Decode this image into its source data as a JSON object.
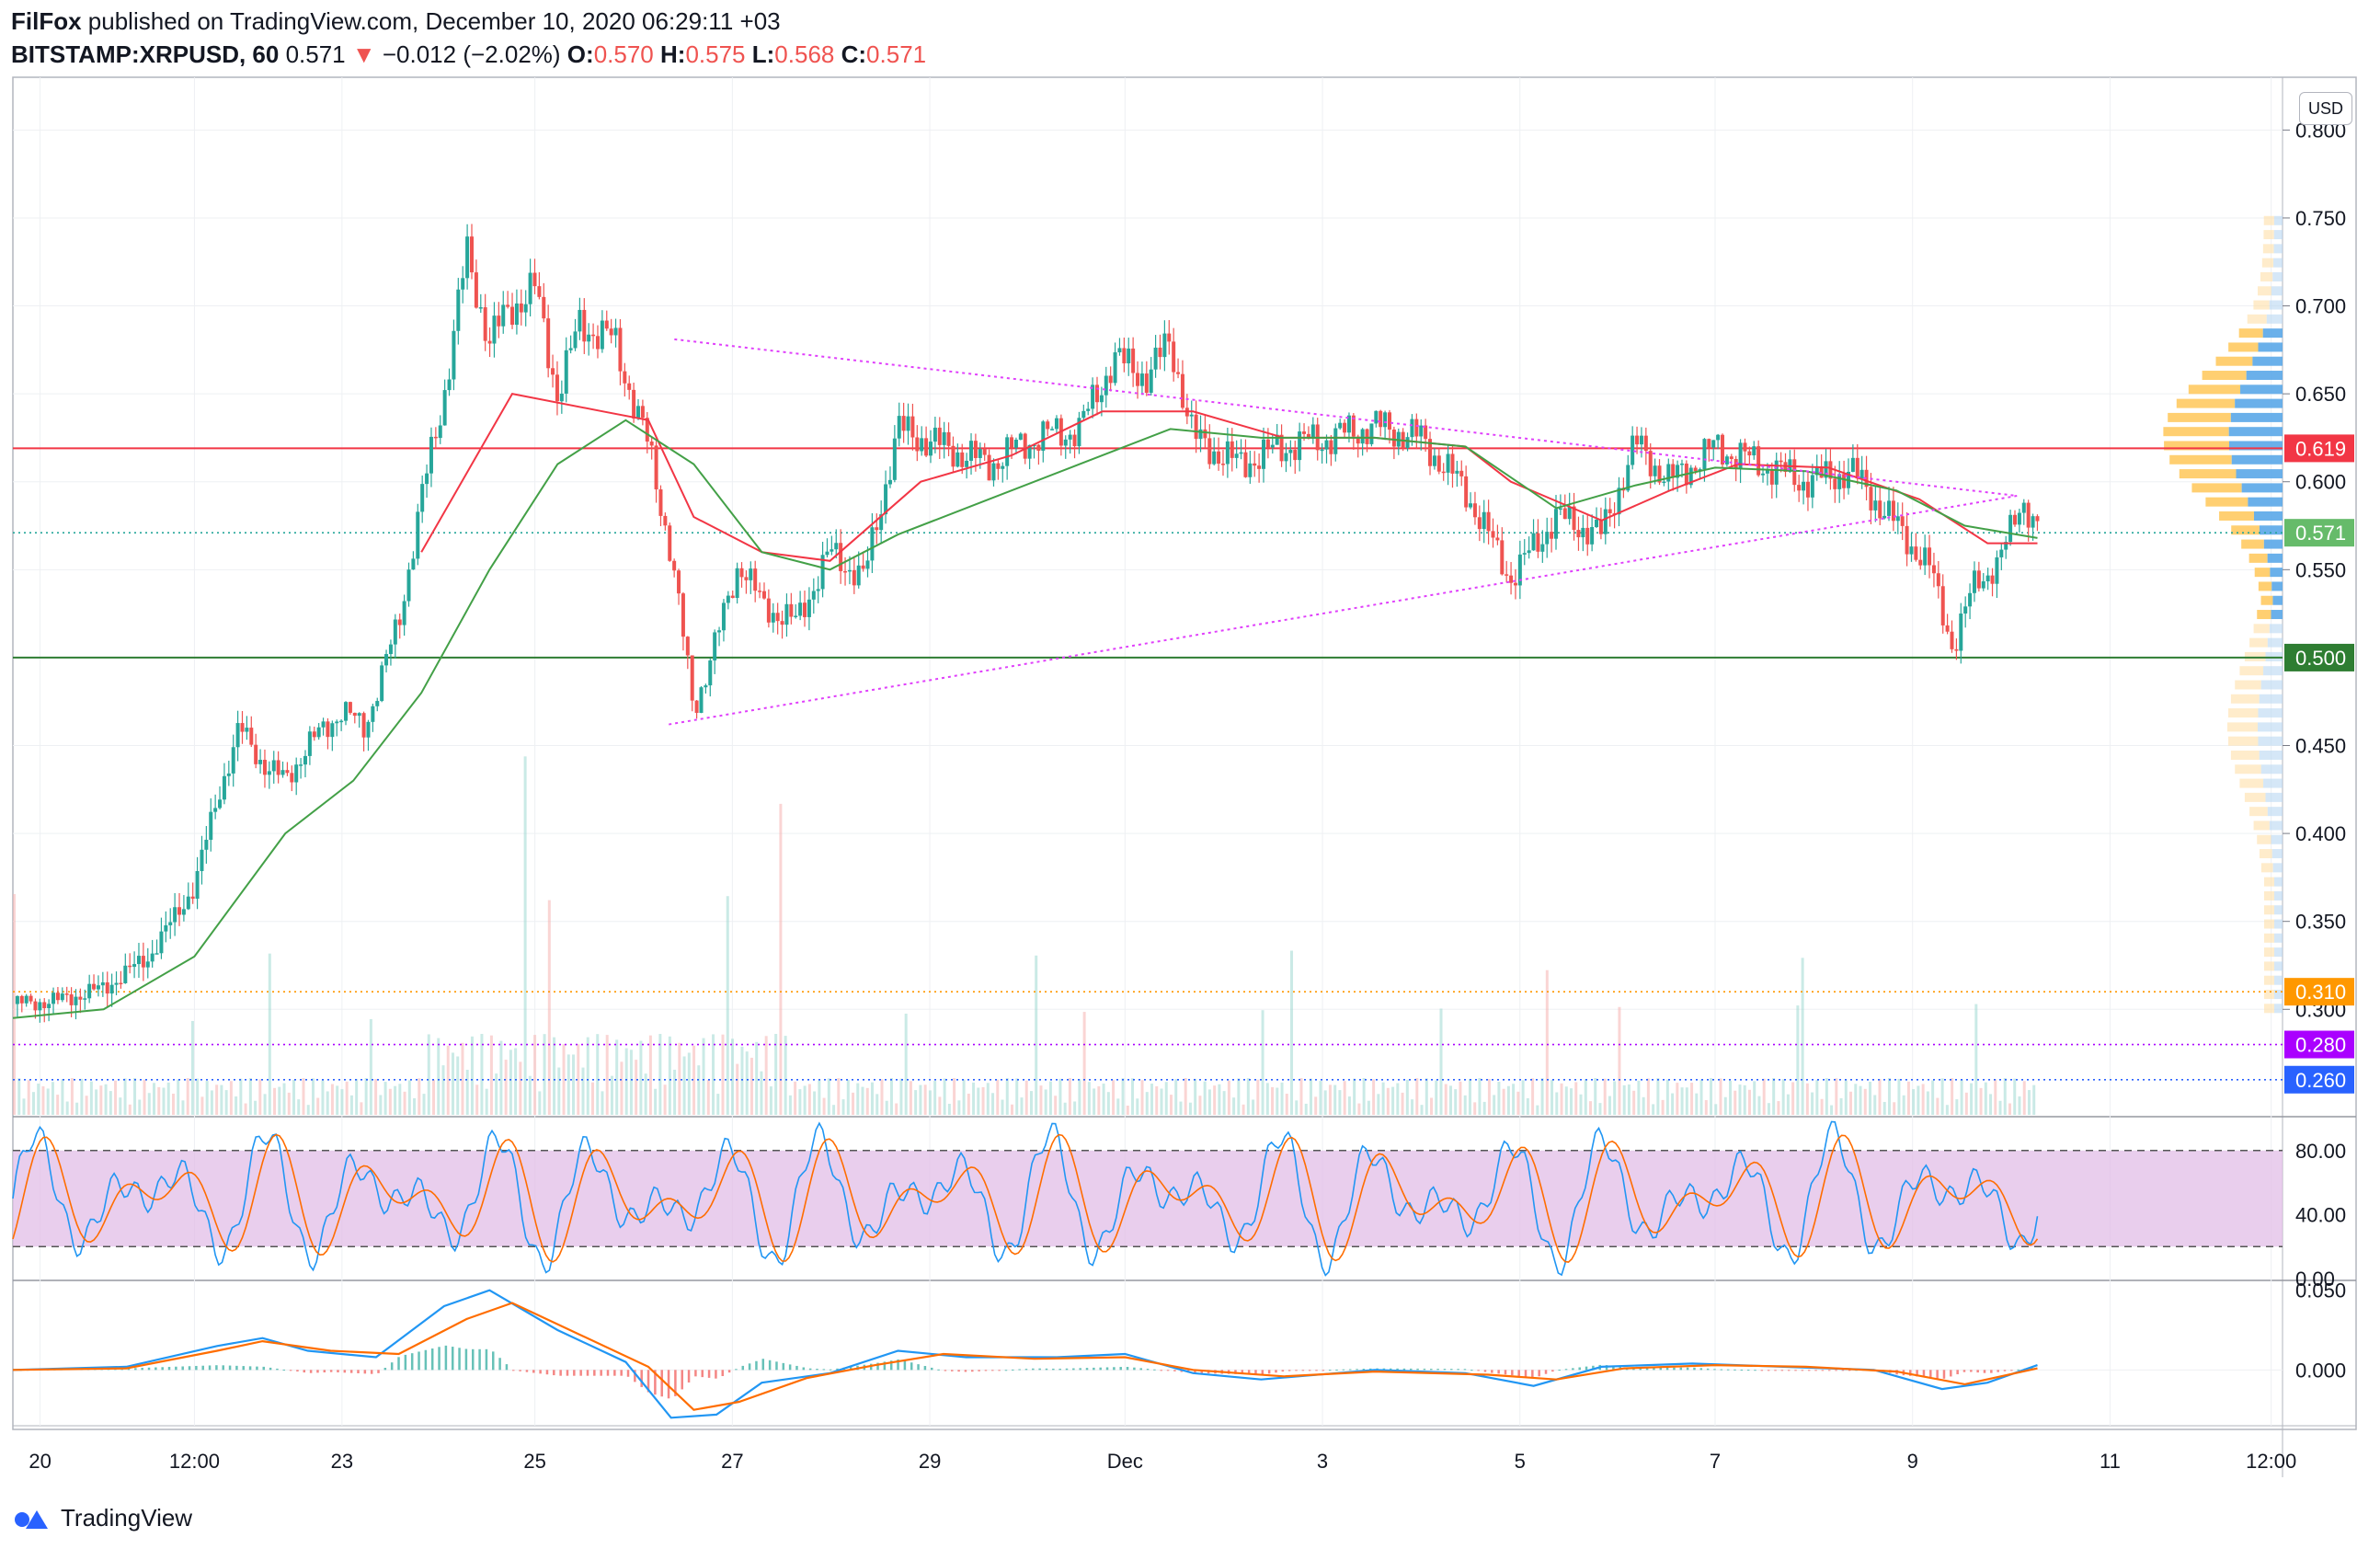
{
  "header": {
    "publisher": "FilFox",
    "published_text": "published on TradingView.com, December 10, 2020 06:29:11 +03",
    "symbol": "BITSTAMP:XRPUSD, 60",
    "last": "0.571",
    "change": "−0.012 (−2.02%)",
    "o_label": "O:",
    "o_value": "0.570",
    "h_label": "H:",
    "h_value": "0.575",
    "l_label": "L:",
    "l_value": "0.568",
    "c_label": "C:",
    "c_value": "0.571"
  },
  "currency_button": "USD",
  "footer": {
    "brand": "TradingView"
  },
  "colors": {
    "up": "#26a69a",
    "down": "#ef5350",
    "ma_red": "#f23645",
    "ma_green": "#43a047",
    "trend": "#e040fb",
    "stoch_bg": "#e1bee7",
    "macd_blue": "#2196f3",
    "macd_orange": "#ff6d00"
  },
  "chart_data": [
    {
      "type": "candlestick",
      "ylim": [
        0.24,
        0.83
      ],
      "yticks": [
        "0.800",
        "0.750",
        "0.700",
        "0.650",
        "0.600",
        "0.550",
        "0.450",
        "0.400",
        "0.350",
        "0.300"
      ],
      "xticks": [
        "20",
        "12:00",
        "23",
        "25",
        "27",
        "29",
        "Dec",
        "3",
        "5",
        "7",
        "9",
        "11",
        "12:00"
      ],
      "price_badges": [
        {
          "label": "0.619",
          "value": 0.619,
          "color": "#f23645"
        },
        {
          "label": "0.571",
          "value": 0.571,
          "color": "#66bb6a"
        },
        {
          "label": "0.500",
          "value": 0.5,
          "color": "#2e7d32"
        },
        {
          "label": "0.310",
          "value": 0.31,
          "color": "#ff9800"
        },
        {
          "label": "0.280",
          "value": 0.28,
          "color": "#aa00ff"
        },
        {
          "label": "0.260",
          "value": 0.26,
          "color": "#2962ff"
        }
      ],
      "horizontal_levels": [
        {
          "value": 0.619,
          "style": "solid",
          "color": "#f23645"
        },
        {
          "value": 0.5,
          "style": "solid",
          "color": "#2e7d32"
        },
        {
          "value": 0.571,
          "style": "dotted",
          "color": "#26a69a"
        },
        {
          "value": 0.31,
          "style": "dotted",
          "color": "#ff9800"
        },
        {
          "value": 0.28,
          "style": "dotted",
          "color": "#aa00ff"
        },
        {
          "value": 0.26,
          "style": "dotted",
          "color": "#2962ff"
        }
      ],
      "trendlines": [
        {
          "from": [
            0.118,
            0.681
          ],
          "to": [
            0.883,
            0.592
          ]
        },
        {
          "from": [
            0.117,
            0.462
          ],
          "to": [
            0.883,
            0.592
          ]
        }
      ],
      "price_path": [
        [
          0.0,
          0.303
        ],
        [
          0.02,
          0.305
        ],
        [
          0.04,
          0.312
        ],
        [
          0.06,
          0.33
        ],
        [
          0.08,
          0.37
        ],
        [
          0.09,
          0.42
        ],
        [
          0.1,
          0.46
        ],
        [
          0.11,
          0.44
        ],
        [
          0.12,
          0.43
        ],
        [
          0.13,
          0.45
        ],
        [
          0.145,
          0.47
        ],
        [
          0.155,
          0.46
        ],
        [
          0.17,
          0.52
        ],
        [
          0.18,
          0.59
        ],
        [
          0.19,
          0.65
        ],
        [
          0.2,
          0.73
        ],
        [
          0.21,
          0.68
        ],
        [
          0.22,
          0.7
        ],
        [
          0.23,
          0.71
        ],
        [
          0.24,
          0.65
        ],
        [
          0.25,
          0.69
        ],
        [
          0.265,
          0.68
        ],
        [
          0.28,
          0.62
        ],
        [
          0.29,
          0.56
        ],
        [
          0.3,
          0.47
        ],
        [
          0.31,
          0.51
        ],
        [
          0.32,
          0.555
        ],
        [
          0.33,
          0.53
        ],
        [
          0.345,
          0.52
        ],
        [
          0.36,
          0.56
        ],
        [
          0.375,
          0.545
        ],
        [
          0.39,
          0.63
        ],
        [
          0.41,
          0.62
        ],
        [
          0.43,
          0.61
        ],
        [
          0.45,
          0.625
        ],
        [
          0.47,
          0.63
        ],
        [
          0.485,
          0.67
        ],
        [
          0.5,
          0.66
        ],
        [
          0.51,
          0.68
        ],
        [
          0.52,
          0.625
        ],
        [
          0.54,
          0.61
        ],
        [
          0.56,
          0.62
        ],
        [
          0.58,
          0.625
        ],
        [
          0.6,
          0.632
        ],
        [
          0.62,
          0.625
        ],
        [
          0.64,
          0.595
        ],
        [
          0.66,
          0.545
        ],
        [
          0.68,
          0.58
        ],
        [
          0.7,
          0.57
        ],
        [
          0.715,
          0.622
        ],
        [
          0.73,
          0.6
        ],
        [
          0.75,
          0.62
        ],
        [
          0.77,
          0.61
        ],
        [
          0.79,
          0.6
        ],
        [
          0.81,
          0.606
        ],
        [
          0.83,
          0.575
        ],
        [
          0.845,
          0.55
        ],
        [
          0.855,
          0.505
        ],
        [
          0.865,
          0.545
        ],
        [
          0.875,
          0.552
        ],
        [
          0.885,
          0.592
        ],
        [
          0.892,
          0.571
        ]
      ],
      "ma_red": [
        [
          0.18,
          0.56
        ],
        [
          0.22,
          0.65
        ],
        [
          0.26,
          0.64
        ],
        [
          0.28,
          0.635
        ],
        [
          0.3,
          0.58
        ],
        [
          0.33,
          0.56
        ],
        [
          0.36,
          0.555
        ],
        [
          0.4,
          0.6
        ],
        [
          0.44,
          0.615
        ],
        [
          0.48,
          0.64
        ],
        [
          0.52,
          0.64
        ],
        [
          0.56,
          0.625
        ],
        [
          0.6,
          0.625
        ],
        [
          0.64,
          0.62
        ],
        [
          0.66,
          0.6
        ],
        [
          0.7,
          0.578
        ],
        [
          0.73,
          0.595
        ],
        [
          0.76,
          0.61
        ],
        [
          0.8,
          0.608
        ],
        [
          0.84,
          0.59
        ],
        [
          0.87,
          0.565
        ],
        [
          0.892,
          0.565
        ]
      ],
      "ma_green": [
        [
          0.0,
          0.295
        ],
        [
          0.04,
          0.3
        ],
        [
          0.08,
          0.33
        ],
        [
          0.12,
          0.4
        ],
        [
          0.15,
          0.43
        ],
        [
          0.18,
          0.48
        ],
        [
          0.21,
          0.55
        ],
        [
          0.24,
          0.61
        ],
        [
          0.27,
          0.635
        ],
        [
          0.3,
          0.61
        ],
        [
          0.33,
          0.56
        ],
        [
          0.36,
          0.55
        ],
        [
          0.39,
          0.57
        ],
        [
          0.43,
          0.59
        ],
        [
          0.47,
          0.61
        ],
        [
          0.51,
          0.63
        ],
        [
          0.55,
          0.625
        ],
        [
          0.6,
          0.625
        ],
        [
          0.64,
          0.62
        ],
        [
          0.68,
          0.585
        ],
        [
          0.715,
          0.598
        ],
        [
          0.75,
          0.608
        ],
        [
          0.79,
          0.606
        ],
        [
          0.83,
          0.595
        ],
        [
          0.86,
          0.575
        ],
        [
          0.892,
          0.568
        ]
      ]
    },
    {
      "type": "stochastic",
      "ylim": [
        0,
        100
      ],
      "yticks": [
        "80.00",
        "40.00",
        "0.00"
      ],
      "band": [
        20,
        80
      ]
    },
    {
      "type": "macd",
      "ylim": [
        -0.035,
        0.055
      ],
      "yticks": [
        "0.050",
        "0.000"
      ],
      "macd_line": [
        [
          0.0,
          0.0
        ],
        [
          0.05,
          0.002
        ],
        [
          0.09,
          0.015
        ],
        [
          0.11,
          0.02
        ],
        [
          0.13,
          0.012
        ],
        [
          0.16,
          0.008
        ],
        [
          0.19,
          0.04
        ],
        [
          0.21,
          0.05
        ],
        [
          0.24,
          0.025
        ],
        [
          0.27,
          0.005
        ],
        [
          0.29,
          -0.03
        ],
        [
          0.31,
          -0.028
        ],
        [
          0.33,
          -0.008
        ],
        [
          0.36,
          -0.002
        ],
        [
          0.39,
          0.012
        ],
        [
          0.42,
          0.008
        ],
        [
          0.46,
          0.008
        ],
        [
          0.49,
          0.01
        ],
        [
          0.52,
          -0.002
        ],
        [
          0.55,
          -0.006
        ],
        [
          0.6,
          0.0
        ],
        [
          0.64,
          -0.002
        ],
        [
          0.67,
          -0.01
        ],
        [
          0.7,
          0.002
        ],
        [
          0.74,
          0.004
        ],
        [
          0.78,
          0.002
        ],
        [
          0.82,
          0.0
        ],
        [
          0.85,
          -0.012
        ],
        [
          0.87,
          -0.008
        ],
        [
          0.892,
          0.003
        ]
      ],
      "signal_line": [
        [
          0.0,
          0.0
        ],
        [
          0.05,
          0.001
        ],
        [
          0.09,
          0.012
        ],
        [
          0.11,
          0.018
        ],
        [
          0.14,
          0.012
        ],
        [
          0.17,
          0.01
        ],
        [
          0.2,
          0.032
        ],
        [
          0.22,
          0.042
        ],
        [
          0.25,
          0.022
        ],
        [
          0.28,
          0.002
        ],
        [
          0.3,
          -0.025
        ],
        [
          0.32,
          -0.02
        ],
        [
          0.35,
          -0.005
        ],
        [
          0.38,
          0.003
        ],
        [
          0.41,
          0.01
        ],
        [
          0.45,
          0.007
        ],
        [
          0.49,
          0.008
        ],
        [
          0.52,
          0.0
        ],
        [
          0.56,
          -0.004
        ],
        [
          0.6,
          -0.001
        ],
        [
          0.65,
          -0.003
        ],
        [
          0.68,
          -0.006
        ],
        [
          0.71,
          0.001
        ],
        [
          0.75,
          0.003
        ],
        [
          0.79,
          0.002
        ],
        [
          0.83,
          -0.001
        ],
        [
          0.86,
          -0.009
        ],
        [
          0.892,
          0.001
        ]
      ]
    }
  ]
}
